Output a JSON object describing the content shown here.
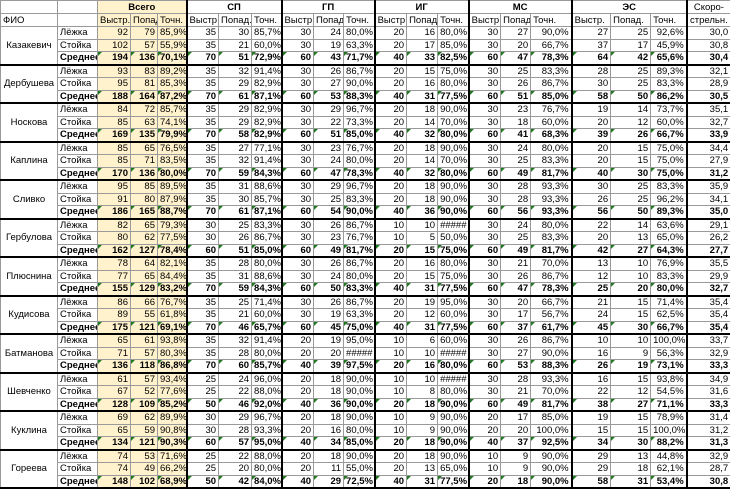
{
  "header": {
    "fio": "ФИО",
    "groups": [
      {
        "label": "Всего",
        "sub": [
          "Выстр.",
          "Попад",
          "Точн."
        ]
      },
      {
        "label": "СП",
        "sub": [
          "Выстр.",
          "Попад.",
          "Точн."
        ]
      },
      {
        "label": "ГП",
        "sub": [
          "Выстр.",
          "Попад.",
          "Точн."
        ]
      },
      {
        "label": "ИГ",
        "sub": [
          "Выстр.",
          "Попад.",
          "Точн."
        ]
      },
      {
        "label": "МС",
        "sub": [
          "Выстр.",
          "Попад.",
          "Точн."
        ]
      },
      {
        "label": "ЭС",
        "sub": [
          "Выстр.",
          "Попад.",
          "Точн."
        ]
      }
    ],
    "speed_line1": "Скоро-",
    "speed_line2": "стрельн."
  },
  "colors": {
    "total_bg": "#fff2cc",
    "marker": "#1f7a1f"
  },
  "people": [
    {
      "name": "Казакевич",
      "rows": [
        {
          "type": "Лёжка",
          "v": [
            "92",
            "79",
            "85,9%",
            "35",
            "30",
            "85,7%",
            "30",
            "24",
            "80,0%",
            "20",
            "16",
            "80,0%",
            "30",
            "27",
            "90,0%",
            "27",
            "25",
            "92,6%",
            "30,0"
          ]
        },
        {
          "type": "Стойка",
          "v": [
            "102",
            "57",
            "55,9%",
            "35",
            "21",
            "60,0%",
            "30",
            "19",
            "63,3%",
            "20",
            "17",
            "85,0%",
            "30",
            "20",
            "66,7%",
            "37",
            "17",
            "45,9%",
            "30,8"
          ]
        },
        {
          "type": "Среднее",
          "v": [
            "194",
            "136",
            "70,1%",
            "70",
            "51",
            "72,9%",
            "60",
            "43",
            "71,7%",
            "40",
            "33",
            "82,5%",
            "60",
            "47",
            "78,3%",
            "64",
            "42",
            "65,6%",
            "30,4"
          ]
        }
      ]
    },
    {
      "name": "Дербушева",
      "rows": [
        {
          "type": "Лёжка",
          "v": [
            "93",
            "83",
            "89,2%",
            "35",
            "32",
            "91,4%",
            "30",
            "26",
            "86,7%",
            "20",
            "15",
            "75,0%",
            "30",
            "25",
            "83,3%",
            "28",
            "25",
            "89,3%",
            "32,1"
          ]
        },
        {
          "type": "Стойка",
          "v": [
            "95",
            "81",
            "85,3%",
            "35",
            "29",
            "82,9%",
            "30",
            "27",
            "90,0%",
            "20",
            "16",
            "80,0%",
            "30",
            "26",
            "86,7%",
            "30",
            "25",
            "83,3%",
            "28,9"
          ]
        },
        {
          "type": "Среднее",
          "v": [
            "188",
            "164",
            "87,2%",
            "70",
            "61",
            "87,1%",
            "60",
            "53",
            "88,3%",
            "40",
            "31",
            "77,5%",
            "60",
            "51",
            "85,0%",
            "58",
            "50",
            "86,2%",
            "30,5"
          ]
        }
      ]
    },
    {
      "name": "Носкова",
      "rows": [
        {
          "type": "Лёжка",
          "v": [
            "84",
            "72",
            "85,7%",
            "35",
            "29",
            "82,9%",
            "30",
            "29",
            "96,7%",
            "20",
            "18",
            "90,0%",
            "30",
            "23",
            "76,7%",
            "19",
            "14",
            "73,7%",
            "35,1"
          ]
        },
        {
          "type": "Стойка",
          "v": [
            "85",
            "63",
            "74,1%",
            "35",
            "29",
            "82,9%",
            "30",
            "22",
            "73,3%",
            "20",
            "14",
            "70,0%",
            "30",
            "18",
            "60,0%",
            "20",
            "12",
            "60,0%",
            "32,7"
          ]
        },
        {
          "type": "Среднее",
          "v": [
            "169",
            "135",
            "79,9%",
            "70",
            "58",
            "82,9%",
            "60",
            "51",
            "85,0%",
            "40",
            "32",
            "80,0%",
            "60",
            "41",
            "68,3%",
            "39",
            "26",
            "66,7%",
            "33,9"
          ]
        }
      ]
    },
    {
      "name": "Каплина",
      "rows": [
        {
          "type": "Лёжка",
          "v": [
            "85",
            "65",
            "76,5%",
            "35",
            "27",
            "77,1%",
            "30",
            "23",
            "76,7%",
            "20",
            "18",
            "90,0%",
            "30",
            "24",
            "80,0%",
            "20",
            "15",
            "75,0%",
            "34,4"
          ]
        },
        {
          "type": "Стойка",
          "v": [
            "85",
            "71",
            "83,5%",
            "35",
            "32",
            "91,4%",
            "30",
            "24",
            "80,0%",
            "20",
            "14",
            "70,0%",
            "30",
            "25",
            "83,3%",
            "20",
            "15",
            "75,0%",
            "27,9"
          ]
        },
        {
          "type": "Среднее",
          "v": [
            "170",
            "136",
            "80,0%",
            "70",
            "59",
            "84,3%",
            "60",
            "47",
            "78,3%",
            "40",
            "32",
            "80,0%",
            "60",
            "49",
            "81,7%",
            "40",
            "30",
            "75,0%",
            "31,2"
          ]
        }
      ]
    },
    {
      "name": "Сливко",
      "rows": [
        {
          "type": "Лёжка",
          "v": [
            "95",
            "85",
            "89,5%",
            "35",
            "31",
            "88,6%",
            "30",
            "29",
            "96,7%",
            "20",
            "18",
            "90,0%",
            "30",
            "28",
            "93,3%",
            "30",
            "25",
            "83,3%",
            "35,9"
          ]
        },
        {
          "type": "Стойка",
          "v": [
            "91",
            "80",
            "87,9%",
            "35",
            "30",
            "85,7%",
            "30",
            "25",
            "83,3%",
            "20",
            "18",
            "90,0%",
            "30",
            "28",
            "93,3%",
            "26",
            "25",
            "96,2%",
            "34,1"
          ]
        },
        {
          "type": "Среднее",
          "v": [
            "186",
            "165",
            "88,7%",
            "70",
            "61",
            "87,1%",
            "60",
            "54",
            "90,0%",
            "40",
            "36",
            "90,0%",
            "60",
            "56",
            "93,3%",
            "56",
            "50",
            "89,3%",
            "35,0"
          ]
        }
      ]
    },
    {
      "name": "Гербулова",
      "rows": [
        {
          "type": "Лёжка",
          "v": [
            "82",
            "65",
            "79,3%",
            "30",
            "25",
            "83,3%",
            "30",
            "26",
            "86,7%",
            "10",
            "10",
            "#####",
            "30",
            "24",
            "80,0%",
            "22",
            "14",
            "63,6%",
            "29,1"
          ]
        },
        {
          "type": "Стойка",
          "v": [
            "80",
            "62",
            "77,5%",
            "30",
            "26",
            "86,7%",
            "30",
            "23",
            "76,7%",
            "10",
            "5",
            "50,0%",
            "30",
            "25",
            "83,3%",
            "20",
            "13",
            "65,0%",
            "26,2"
          ]
        },
        {
          "type": "Среднее",
          "v": [
            "162",
            "127",
            "78,4%",
            "60",
            "51",
            "85,0%",
            "60",
            "49",
            "81,7%",
            "20",
            "15",
            "75,0%",
            "60",
            "49",
            "81,7%",
            "42",
            "27",
            "64,3%",
            "27,7"
          ]
        }
      ]
    },
    {
      "name": "Плюснина",
      "rows": [
        {
          "type": "Лёжка",
          "v": [
            "78",
            "64",
            "82,1%",
            "35",
            "28",
            "80,0%",
            "30",
            "26",
            "86,7%",
            "20",
            "16",
            "80,0%",
            "30",
            "21",
            "70,0%",
            "13",
            "10",
            "76,9%",
            "35,5"
          ]
        },
        {
          "type": "Стойка",
          "v": [
            "77",
            "65",
            "84,4%",
            "35",
            "31",
            "88,6%",
            "30",
            "24",
            "80,0%",
            "20",
            "15",
            "75,0%",
            "30",
            "26",
            "86,7%",
            "12",
            "10",
            "83,3%",
            "29,9"
          ]
        },
        {
          "type": "Среднее",
          "v": [
            "155",
            "129",
            "83,2%",
            "70",
            "59",
            "84,3%",
            "60",
            "50",
            "83,3%",
            "40",
            "31",
            "77,5%",
            "60",
            "47",
            "78,3%",
            "25",
            "20",
            "80,0%",
            "32,7"
          ]
        }
      ]
    },
    {
      "name": "Кудисова",
      "rows": [
        {
          "type": "Лёжка",
          "v": [
            "86",
            "66",
            "76,7%",
            "35",
            "25",
            "71,4%",
            "30",
            "26",
            "86,7%",
            "20",
            "19",
            "95,0%",
            "30",
            "20",
            "66,7%",
            "21",
            "15",
            "71,4%",
            "35,4"
          ]
        },
        {
          "type": "Стойка",
          "v": [
            "89",
            "55",
            "61,8%",
            "35",
            "21",
            "60,0%",
            "30",
            "19",
            "63,3%",
            "20",
            "12",
            "60,0%",
            "30",
            "17",
            "56,7%",
            "24",
            "15",
            "62,5%",
            "35,4"
          ]
        },
        {
          "type": "Среднее",
          "v": [
            "175",
            "121",
            "69,1%",
            "70",
            "46",
            "65,7%",
            "60",
            "45",
            "75,0%",
            "40",
            "31",
            "77,5%",
            "60",
            "37",
            "61,7%",
            "45",
            "30",
            "66,7%",
            "35,4"
          ]
        }
      ]
    },
    {
      "name": "Батманова",
      "rows": [
        {
          "type": "Лёжка",
          "v": [
            "65",
            "61",
            "93,8%",
            "35",
            "32",
            "91,4%",
            "20",
            "19",
            "95,0%",
            "10",
            "6",
            "60,0%",
            "30",
            "26",
            "86,7%",
            "10",
            "10",
            "100,0%",
            "33,7"
          ]
        },
        {
          "type": "Стойка",
          "v": [
            "71",
            "57",
            "80,3%",
            "35",
            "28",
            "80,0%",
            "20",
            "20",
            "#####",
            "10",
            "10",
            "#####",
            "30",
            "27",
            "90,0%",
            "16",
            "9",
            "56,3%",
            "32,9"
          ]
        },
        {
          "type": "Среднее",
          "v": [
            "136",
            "118",
            "86,8%",
            "70",
            "60",
            "85,7%",
            "40",
            "39",
            "97,5%",
            "20",
            "16",
            "80,0%",
            "60",
            "53",
            "88,3%",
            "26",
            "19",
            "73,1%",
            "33,3"
          ]
        }
      ]
    },
    {
      "name": "Шевченко",
      "rows": [
        {
          "type": "Лёжка",
          "v": [
            "61",
            "57",
            "93,4%",
            "25",
            "24",
            "96,0%",
            "20",
            "18",
            "90,0%",
            "10",
            "10",
            "#####",
            "30",
            "28",
            "93,3%",
            "16",
            "15",
            "93,8%",
            "34,9"
          ]
        },
        {
          "type": "Стойка",
          "v": [
            "67",
            "52",
            "77,6%",
            "25",
            "22",
            "88,0%",
            "20",
            "18",
            "90,0%",
            "10",
            "8",
            "80,0%",
            "30",
            "21",
            "70,0%",
            "22",
            "12",
            "54,5%",
            "31,6"
          ]
        },
        {
          "type": "Среднее",
          "v": [
            "128",
            "109",
            "85,2%",
            "50",
            "46",
            "92,0%",
            "40",
            "36",
            "90,0%",
            "20",
            "18",
            "90,0%",
            "60",
            "49",
            "81,7%",
            "38",
            "27",
            "71,1%",
            "33,3"
          ]
        }
      ]
    },
    {
      "name": "Куклина",
      "rows": [
        {
          "type": "Лёжка",
          "v": [
            "69",
            "62",
            "89,9%",
            "30",
            "29",
            "96,7%",
            "20",
            "18",
            "90,0%",
            "10",
            "9",
            "90,0%",
            "20",
            "17",
            "85,0%",
            "19",
            "15",
            "78,9%",
            "31,4"
          ]
        },
        {
          "type": "Стойка",
          "v": [
            "65",
            "59",
            "90,8%",
            "30",
            "28",
            "93,3%",
            "20",
            "16",
            "80,0%",
            "10",
            "9",
            "90,0%",
            "20",
            "20",
            "100,0%",
            "15",
            "15",
            "100,0%",
            "31,2"
          ]
        },
        {
          "type": "Среднее",
          "v": [
            "134",
            "121",
            "90,3%",
            "60",
            "57",
            "95,0%",
            "40",
            "34",
            "85,0%",
            "20",
            "18",
            "90,0%",
            "40",
            "37",
            "92,5%",
            "34",
            "30",
            "88,2%",
            "31,3"
          ]
        }
      ]
    },
    {
      "name": "Гореева",
      "rows": [
        {
          "type": "Лёжка",
          "v": [
            "74",
            "53",
            "71,6%",
            "25",
            "22",
            "88,0%",
            "20",
            "18",
            "90,0%",
            "20",
            "18",
            "90,0%",
            "10",
            "9",
            "90,0%",
            "29",
            "13",
            "44,8%",
            "32,9"
          ]
        },
        {
          "type": "Стойка",
          "v": [
            "74",
            "49",
            "66,2%",
            "25",
            "20",
            "80,0%",
            "20",
            "11",
            "55,0%",
            "20",
            "13",
            "65,0%",
            "10",
            "9",
            "90,0%",
            "29",
            "18",
            "62,1%",
            "28,7"
          ]
        },
        {
          "type": "Среднее",
          "v": [
            "148",
            "102",
            "68,9%",
            "50",
            "42",
            "84,0%",
            "40",
            "29",
            "72,5%",
            "40",
            "31",
            "77,5%",
            "20",
            "18",
            "90,0%",
            "58",
            "31",
            "53,4%",
            "30,8"
          ]
        }
      ]
    }
  ]
}
